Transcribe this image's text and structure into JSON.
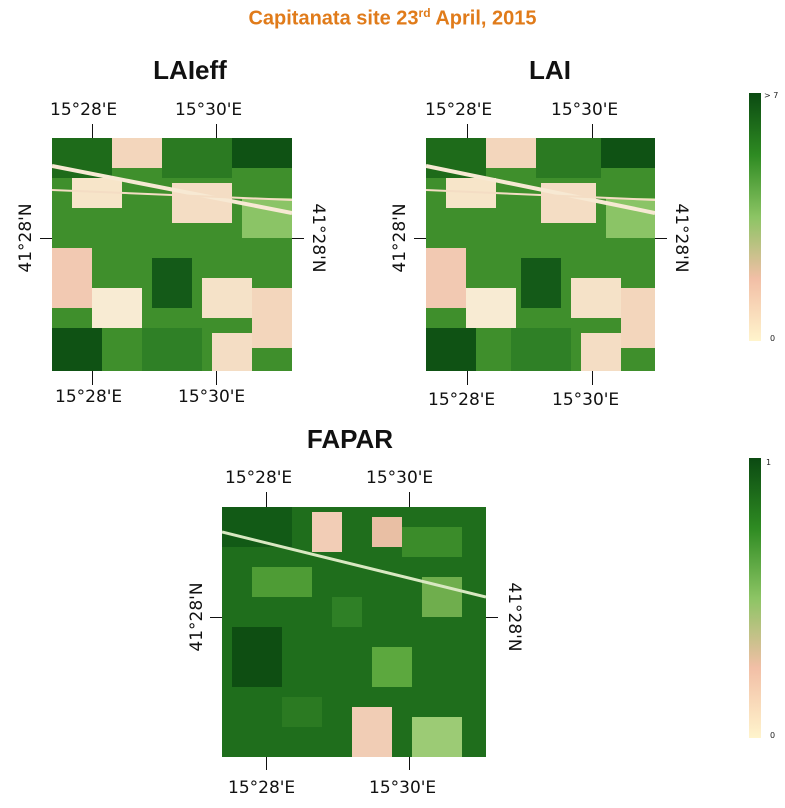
{
  "title": {
    "prefix": "Capitanata site 23",
    "sup": "rd",
    "suffix": " April, 2015"
  },
  "panels": {
    "laieff": {
      "title": "LAIeff"
    },
    "lai": {
      "title": "LAI"
    },
    "fapar": {
      "title": "FAPAR"
    }
  },
  "axis_labels": {
    "lon_left": "15°28'E",
    "lon_right": "15°30'E",
    "lat": "41°28'N"
  },
  "legends": {
    "lai": {
      "max_label": "> 7",
      "min_label": "0",
      "colors": [
        "#0B4A12",
        "#2E8B22",
        "#8CC464",
        "#F2BFA6",
        "#FFF4CC"
      ]
    },
    "fapar": {
      "max_label": "1",
      "min_label": "0",
      "colors": [
        "#0B4A12",
        "#2E8B22",
        "#8CC464",
        "#F2BFA6",
        "#FFF4CC"
      ]
    }
  }
}
